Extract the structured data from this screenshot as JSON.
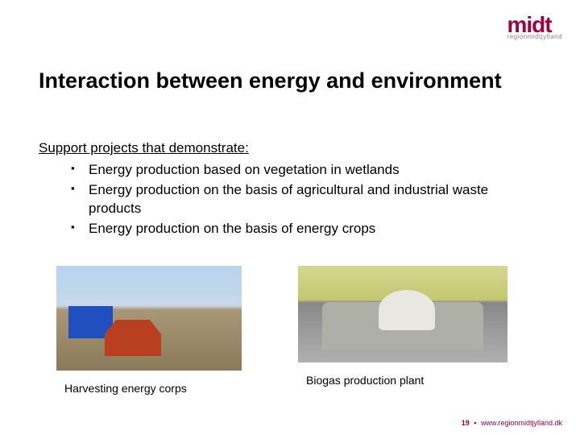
{
  "logo": {
    "main": "midt",
    "sub": "regionmidtjylland",
    "color": "#a00040",
    "sub_color": "#888888"
  },
  "title": "Interaction between energy and environment",
  "intro": "Support projects that demonstrate:",
  "bullets": [
    "Energy production based on vegetation in wetlands",
    "Energy production on the basis of agricultural and industrial waste products",
    "Energy production on the basis of energy crops"
  ],
  "images": [
    {
      "caption": "Harvesting energy corps"
    },
    {
      "caption": "Biogas production plant"
    }
  ],
  "footer": {
    "page": "19",
    "separator": "▪",
    "url": "www.regionmidtjylland.dk"
  },
  "style": {
    "title_fontsize": 27,
    "body_fontsize": 17,
    "caption_fontsize": 14,
    "footer_fontsize": 9,
    "background_color": "#ffffff",
    "text_color": "#000000",
    "accent_color": "#a00040"
  }
}
